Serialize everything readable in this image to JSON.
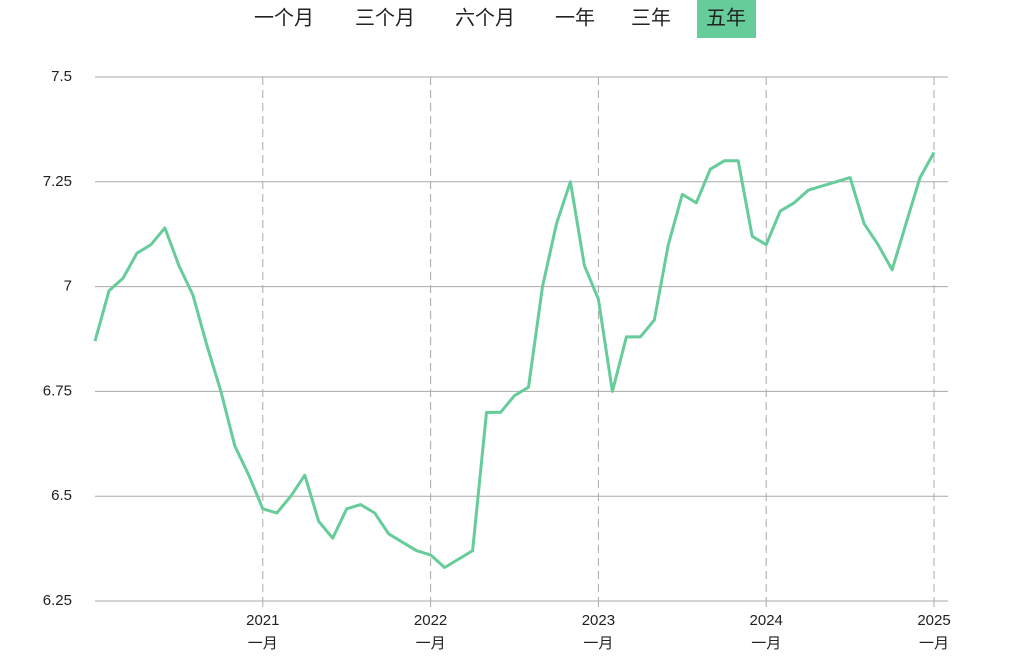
{
  "tabs": {
    "items": [
      "一个月",
      "三个月",
      "六个月",
      "一年",
      "三年",
      "五年"
    ],
    "active": 5
  },
  "chart_data": {
    "type": "line",
    "x": [
      "2020-01",
      "2020-02",
      "2020-03",
      "2020-04",
      "2020-05",
      "2020-06",
      "2020-07",
      "2020-08",
      "2020-09",
      "2020-10",
      "2020-11",
      "2020-12",
      "2021-01",
      "2021-02",
      "2021-03",
      "2021-04",
      "2021-05",
      "2021-06",
      "2021-07",
      "2021-08",
      "2021-09",
      "2021-10",
      "2021-11",
      "2021-12",
      "2022-01",
      "2022-02",
      "2022-03",
      "2022-04",
      "2022-05",
      "2022-06",
      "2022-07",
      "2022-08",
      "2022-09",
      "2022-10",
      "2022-11",
      "2022-12",
      "2023-01",
      "2023-02",
      "2023-03",
      "2023-04",
      "2023-05",
      "2023-06",
      "2023-07",
      "2023-08",
      "2023-09",
      "2023-10",
      "2023-11",
      "2023-12",
      "2024-01",
      "2024-02",
      "2024-03",
      "2024-04",
      "2024-05",
      "2024-06",
      "2024-07",
      "2024-08",
      "2024-09",
      "2024-10",
      "2024-11",
      "2024-12",
      "2025-01"
    ],
    "series": [
      {
        "color": "#66cc99",
        "values": [
          6.87,
          6.99,
          7.02,
          7.08,
          7.1,
          7.14,
          7.05,
          6.98,
          6.86,
          6.75,
          6.62,
          6.55,
          6.47,
          6.46,
          6.5,
          6.55,
          6.44,
          6.4,
          6.47,
          6.48,
          6.46,
          6.41,
          6.39,
          6.37,
          6.36,
          6.33,
          6.35,
          6.37,
          6.7,
          6.7,
          6.74,
          6.76,
          7.0,
          7.15,
          7.25,
          7.05,
          6.97,
          6.75,
          6.88,
          6.88,
          6.92,
          7.1,
          7.22,
          7.2,
          7.28,
          7.3,
          7.3,
          7.12,
          7.1,
          7.18,
          7.2,
          7.23,
          7.24,
          7.25,
          7.26,
          7.15,
          7.1,
          7.04,
          7.15,
          7.26,
          7.32
        ]
      }
    ],
    "xlim": [
      "2020-01",
      "2025-02"
    ],
    "xticks": [
      {
        "value": "2021-01",
        "label": "2021",
        "month": "一月"
      },
      {
        "value": "2022-01",
        "label": "2022",
        "month": "一月"
      },
      {
        "value": "2023-01",
        "label": "2023",
        "month": "一月"
      },
      {
        "value": "2024-01",
        "label": "2024",
        "month": "一月"
      },
      {
        "value": "2025-01",
        "label": "2025",
        "month": "一月"
      }
    ],
    "ylim": [
      6.25,
      7.5
    ],
    "yticks": [
      6.25,
      6.5,
      6.75,
      7,
      7.25,
      7.5
    ],
    "grid": true
  }
}
